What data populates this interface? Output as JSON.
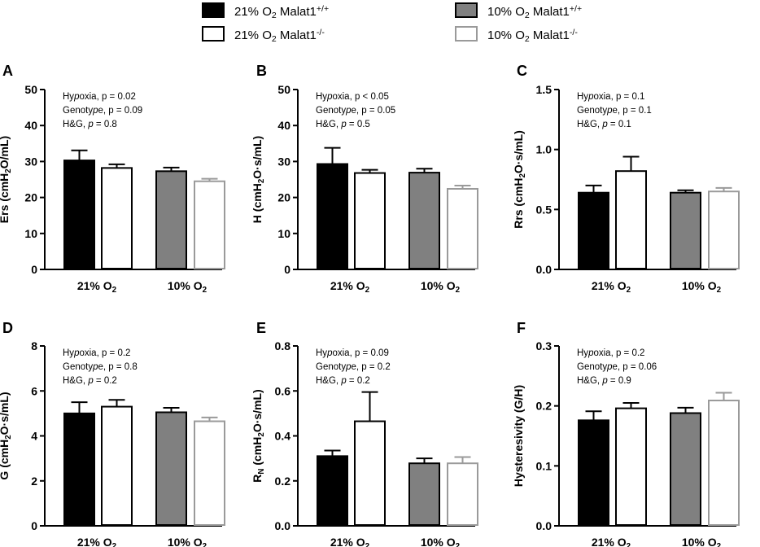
{
  "legend": {
    "items": [
      {
        "label": "21% O₂ Malat1⁺/⁺",
        "fill": "#000000",
        "stroke": "#000000"
      },
      {
        "label": "21% O₂ Malat1⁻/⁻",
        "fill": "#ffffff",
        "stroke": "#000000"
      },
      {
        "label": "10% O₂ Malat1⁺/⁺",
        "fill": "#808080",
        "stroke": "#000000"
      },
      {
        "label": "10% O₂ Malat1⁻/⁻",
        "fill": "#ffffff",
        "stroke": "#9a9a9a"
      }
    ]
  },
  "chart_data": [
    {
      "panel": "A",
      "type": "bar",
      "ylabel": "Ers (cmH₂O/mL)",
      "ylim": [
        0,
        50
      ],
      "yticks": [
        "0",
        "10",
        "20",
        "30",
        "40",
        "50"
      ],
      "categories": [
        "21% O₂",
        "10% O₂"
      ],
      "series": [
        {
          "name": "21% O₂ Malat1⁺/⁺",
          "values": [
            30.3,
            null
          ],
          "errors": [
            2.8,
            null
          ]
        },
        {
          "name": "21% O₂ Malat1⁻/⁻",
          "values": [
            28.2,
            null
          ],
          "errors": [
            1.0,
            null
          ]
        },
        {
          "name": "10% O₂ Malat1⁺/⁺",
          "values": [
            null,
            27.3
          ],
          "errors": [
            null,
            1.0
          ]
        },
        {
          "name": "10% O₂ Malat1⁻/⁻",
          "values": [
            null,
            24.5
          ],
          "errors": [
            null,
            0.7
          ]
        }
      ],
      "annotations": [
        "Hypoxia, p = 0.02",
        "Genotype, p = 0.09",
        "H&G, p = 0.8"
      ]
    },
    {
      "panel": "B",
      "type": "bar",
      "ylabel": "H (cmH₂O·s/mL)",
      "ylim": [
        0,
        50
      ],
      "yticks": [
        "0",
        "10",
        "20",
        "30",
        "40",
        "50"
      ],
      "categories": [
        "21% O₂",
        "10% O₂"
      ],
      "series": [
        {
          "name": "21% O₂ Malat1⁺/⁺",
          "values": [
            29.3,
            null
          ],
          "errors": [
            4.5,
            null
          ]
        },
        {
          "name": "21% O₂ Malat1⁻/⁻",
          "values": [
            26.8,
            null
          ],
          "errors": [
            0.9,
            null
          ]
        },
        {
          "name": "10% O₂ Malat1⁺/⁺",
          "values": [
            null,
            26.9
          ],
          "errors": [
            null,
            1.1
          ]
        },
        {
          "name": "10% O₂ Malat1⁻/⁻",
          "values": [
            null,
            22.4
          ],
          "errors": [
            null,
            0.9
          ]
        }
      ],
      "annotations": [
        "Hypoxia, p < 0.05",
        "Genotype, p = 0.05",
        "H&G, p = 0.5"
      ]
    },
    {
      "panel": "C",
      "type": "bar",
      "ylabel": "Rrs (cmH₂O·s/mL)",
      "ylim": [
        0,
        1.5
      ],
      "yticks": [
        "0.0",
        "0.5",
        "1.0",
        "1.5"
      ],
      "categories": [
        "21% O₂",
        "10% O₂"
      ],
      "series": [
        {
          "name": "21% O₂ Malat1⁺/⁺",
          "values": [
            0.64,
            null
          ],
          "errors": [
            0.06,
            null
          ]
        },
        {
          "name": "21% O₂ Malat1⁻/⁻",
          "values": [
            0.82,
            null
          ],
          "errors": [
            0.12,
            null
          ]
        },
        {
          "name": "10% O₂ Malat1⁺/⁺",
          "values": [
            null,
            0.64
          ],
          "errors": [
            null,
            0.02
          ]
        },
        {
          "name": "10% O₂ Malat1⁻/⁻",
          "values": [
            null,
            0.65
          ],
          "errors": [
            null,
            0.03
          ]
        }
      ],
      "annotations": [
        "Hypoxia, p = 0.1",
        "Genotype, p = 0.1",
        "H&G, p = 0.1"
      ]
    },
    {
      "panel": "D",
      "type": "bar",
      "ylabel": "G (cmH₂O·s/mL)",
      "ylim": [
        0,
        8
      ],
      "yticks": [
        "0",
        "2",
        "4",
        "6",
        "8"
      ],
      "categories": [
        "21% O₂",
        "10% O₂"
      ],
      "series": [
        {
          "name": "21% O₂ Malat1⁺/⁺",
          "values": [
            5.0,
            null
          ],
          "errors": [
            0.5,
            null
          ]
        },
        {
          "name": "21% O₂ Malat1⁻/⁻",
          "values": [
            5.3,
            null
          ],
          "errors": [
            0.3,
            null
          ]
        },
        {
          "name": "10% O₂ Malat1⁺/⁺",
          "values": [
            null,
            5.05
          ],
          "errors": [
            null,
            0.2
          ]
        },
        {
          "name": "10% O₂ Malat1⁻/⁻",
          "values": [
            null,
            4.65
          ],
          "errors": [
            null,
            0.17
          ]
        }
      ],
      "annotations": [
        "Hypoxia, p = 0.2",
        "Genotype, p = 0.8",
        "H&G, p = 0.2"
      ]
    },
    {
      "panel": "E",
      "type": "bar",
      "ylabel": "R_N (cmH₂O·s/mL)",
      "ylim": [
        0,
        0.8
      ],
      "yticks": [
        "0.0",
        "0.2",
        "0.4",
        "0.6",
        "0.8"
      ],
      "categories": [
        "21% O₂",
        "10% O₂"
      ],
      "series": [
        {
          "name": "21% O₂ Malat1⁺/⁺",
          "values": [
            0.31,
            null
          ],
          "errors": [
            0.025,
            null
          ]
        },
        {
          "name": "21% O₂ Malat1⁻/⁻",
          "values": [
            0.465,
            null
          ],
          "errors": [
            0.13,
            null
          ]
        },
        {
          "name": "10% O₂ Malat1⁺/⁺",
          "values": [
            null,
            0.278
          ],
          "errors": [
            null,
            0.022
          ]
        },
        {
          "name": "10% O₂ Malat1⁻/⁻",
          "values": [
            null,
            0.278
          ],
          "errors": [
            null,
            0.028
          ]
        }
      ],
      "annotations": [
        "Hypoxia, p = 0.09",
        "Genotype, p = 0.2",
        "H&G, p = 0.2"
      ]
    },
    {
      "panel": "F",
      "type": "bar",
      "ylabel": "Hysteresivity (G/H)",
      "ylim": [
        0,
        0.3
      ],
      "yticks": [
        "0.0",
        "0.1",
        "0.2",
        "0.3"
      ],
      "categories": [
        "21% O₂",
        "10% O₂"
      ],
      "series": [
        {
          "name": "21% O₂ Malat1⁺/⁺",
          "values": [
            0.176,
            null
          ],
          "errors": [
            0.015,
            null
          ]
        },
        {
          "name": "21% O₂ Malat1⁻/⁻",
          "values": [
            0.196,
            null
          ],
          "errors": [
            0.009,
            null
          ]
        },
        {
          "name": "10% O₂ Malat1⁺/⁺",
          "values": [
            null,
            0.188
          ],
          "errors": [
            null,
            0.009
          ]
        },
        {
          "name": "10% O₂ Malat1⁻/⁻",
          "values": [
            null,
            0.209
          ],
          "errors": [
            null,
            0.013
          ]
        }
      ],
      "annotations": [
        "Hypoxia, p = 0.2",
        "Genotype, p = 0.06",
        "H&G, p = 0.9"
      ]
    }
  ]
}
